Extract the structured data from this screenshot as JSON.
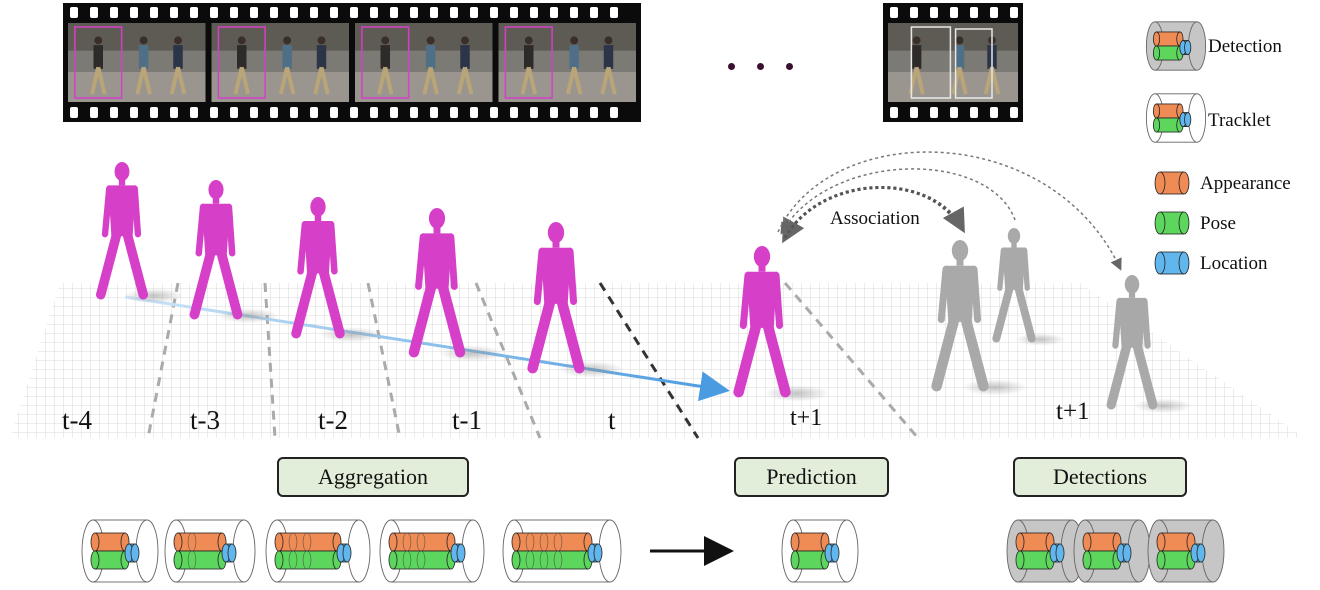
{
  "time_labels": {
    "t_minus_4": "t-4",
    "t_minus_3": "t-3",
    "t_minus_2": "t-2",
    "t_minus_1": "t-1",
    "t": "t",
    "t_plus_1_prediction": "t+1",
    "t_plus_1_detections": "t+1"
  },
  "stages": {
    "aggregation": "Aggregation",
    "prediction": "Prediction",
    "detections": "Detections"
  },
  "association_label": "Association",
  "legend": {
    "detection": "Detection",
    "tracklet": "Tracklet",
    "appearance": "Appearance",
    "pose": "Pose",
    "location": "Location"
  },
  "colors": {
    "appearance": "#ef8b54",
    "pose": "#5cd65c",
    "location": "#62b6ee",
    "human_mesh": "#d63fc8",
    "detection_mesh": "#a9a9a9",
    "stage_box_fill": "#e2eed9",
    "trajectory_arrow": "#4a9be0"
  },
  "icons": {
    "film_strip": "film-strip-icon",
    "human_mesh": "human-mesh-icon",
    "tracklet_cylinder": "tracklet-cylinder-icon",
    "detection_cylinder": "detection-cylinder-icon"
  }
}
